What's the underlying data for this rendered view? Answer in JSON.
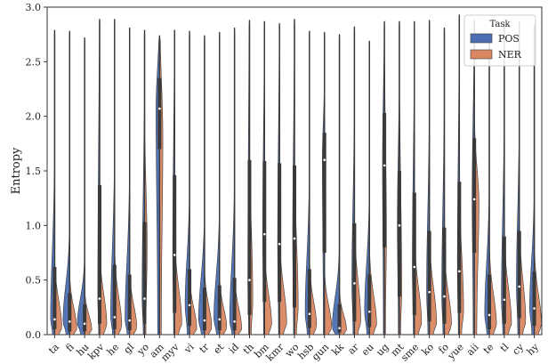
{
  "chart_data": {
    "type": "split-violin",
    "ylabel": "Entropy",
    "ylim": [
      0,
      3.0
    ],
    "yticks": [
      0.0,
      0.5,
      1.0,
      1.5,
      2.0,
      2.5,
      3.0
    ],
    "ytick_labels": [
      "0.0",
      "0.5",
      "1.0",
      "1.5",
      "2.0",
      "2.5",
      "3.0"
    ],
    "grid": false,
    "legend": {
      "title": "Task",
      "placement": "top-right",
      "entries": [
        {
          "name": "POS",
          "color": "#4c6fb3"
        },
        {
          "name": "NER",
          "color": "#d98762"
        }
      ]
    },
    "categories": [
      "ta",
      "fi",
      "hu",
      "kpv",
      "he",
      "gl",
      "yo",
      "am",
      "myv",
      "vi",
      "tr",
      "et",
      "id",
      "th",
      "bm",
      "kmr",
      "wo",
      "hsb",
      "gun",
      "kk",
      "ar",
      "eu",
      "ug",
      "mt",
      "sme",
      "ko",
      "fo",
      "yue",
      "aii",
      "te",
      "tl",
      "cy",
      "hy"
    ],
    "series": [
      {
        "name": "POS",
        "color": "#4c6fb3",
        "median": [
          0.14,
          0.12,
          0.1,
          0.33,
          0.16,
          0.13,
          0.33,
          2.07,
          0.73,
          0.27,
          0.13,
          0.14,
          0.12,
          0.5,
          0.92,
          0.83,
          0.88,
          0.19,
          1.6,
          0.06,
          0.47,
          0.21,
          1.55,
          1.0,
          0.62,
          0.39,
          0.35,
          0.58,
          1.24,
          0.18,
          0.32,
          0.44,
          0.24
        ],
        "q1": [
          0.05,
          0.03,
          0.03,
          0.1,
          0.05,
          0.04,
          0.1,
          1.7,
          0.2,
          0.08,
          0.04,
          0.04,
          0.04,
          0.18,
          0.3,
          0.3,
          0.25,
          0.06,
          0.75,
          0.02,
          0.12,
          0.07,
          0.8,
          0.35,
          0.18,
          0.12,
          0.1,
          0.2,
          0.75,
          0.05,
          0.1,
          0.15,
          0.08
        ],
        "q3": [
          0.62,
          0.38,
          0.28,
          1.37,
          0.64,
          0.55,
          1.03,
          2.35,
          1.46,
          0.6,
          0.43,
          0.45,
          0.52,
          1.6,
          1.59,
          1.57,
          1.55,
          0.6,
          1.85,
          0.28,
          1.02,
          0.55,
          2.03,
          1.5,
          1.3,
          0.95,
          0.98,
          1.4,
          1.8,
          0.55,
          0.9,
          0.95,
          0.58
        ],
        "max": [
          2.79,
          2.78,
          2.72,
          2.89,
          2.89,
          2.81,
          2.79,
          2.74,
          2.79,
          2.78,
          2.74,
          2.77,
          2.81,
          2.88,
          2.87,
          2.85,
          2.89,
          2.78,
          2.77,
          2.75,
          2.82,
          2.69,
          2.87,
          2.87,
          2.87,
          2.88,
          2.81,
          2.93,
          2.88,
          2.75,
          2.87,
          2.87,
          2.84
        ]
      },
      {
        "name": "NER",
        "color": "#d98762",
        "median": [
          0.06,
          0.05,
          0.04,
          0.08,
          0.07,
          0.06,
          0.8,
          1.8,
          0.1,
          0.05,
          0.06,
          0.06,
          0.05,
          0.3,
          0.08,
          0.1,
          0.25,
          0.07,
          0.06,
          0.04,
          0.12,
          0.09,
          0.9,
          0.4,
          0.1,
          0.1,
          0.08,
          0.22,
          1.2,
          0.08,
          0.1,
          0.12,
          0.08
        ],
        "q1": [
          0.02,
          0.02,
          0.02,
          0.03,
          0.02,
          0.02,
          0.3,
          1.5,
          0.03,
          0.02,
          0.02,
          0.02,
          0.02,
          0.1,
          0.03,
          0.03,
          0.08,
          0.02,
          0.02,
          0.01,
          0.04,
          0.03,
          0.4,
          0.12,
          0.03,
          0.03,
          0.03,
          0.06,
          0.95,
          0.03,
          0.03,
          0.04,
          0.03
        ],
        "q3": [
          0.25,
          0.2,
          0.15,
          0.3,
          0.28,
          0.22,
          1.2,
          2.2,
          0.35,
          0.2,
          0.22,
          0.2,
          0.2,
          0.8,
          0.3,
          0.35,
          0.7,
          0.25,
          0.22,
          0.15,
          0.4,
          0.3,
          1.55,
          1.1,
          0.35,
          0.35,
          0.3,
          0.6,
          1.45,
          0.3,
          0.35,
          0.4,
          0.3
        ],
        "max": [
          2.79,
          2.78,
          2.72,
          2.89,
          2.89,
          2.81,
          2.79,
          2.74,
          2.79,
          2.78,
          2.74,
          2.77,
          2.81,
          2.88,
          2.87,
          2.85,
          2.89,
          2.78,
          2.77,
          2.75,
          2.82,
          2.69,
          2.87,
          2.87,
          2.87,
          2.88,
          2.81,
          2.93,
          2.88,
          2.75,
          2.87,
          2.87,
          2.84
        ]
      }
    ]
  }
}
